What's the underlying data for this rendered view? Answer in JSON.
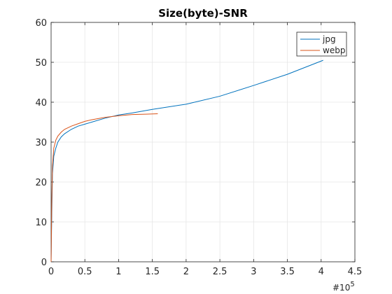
{
  "chart_data": {
    "type": "line",
    "title": "Size(byte)-SNR",
    "xlabel": "",
    "ylabel": "",
    "xlim": [
      0,
      4.5
    ],
    "ylim": [
      0,
      60
    ],
    "x_ticks": [
      0,
      0.5,
      1,
      1.5,
      2,
      2.5,
      3,
      3.5,
      4,
      4.5
    ],
    "x_tick_labels": [
      "0",
      "0.5",
      "1",
      "1.5",
      "2",
      "2.5",
      "3",
      "3.5",
      "4",
      "4.5"
    ],
    "y_ticks": [
      0,
      10,
      20,
      30,
      40,
      50,
      60
    ],
    "y_tick_labels": [
      "0",
      "10",
      "20",
      "30",
      "40",
      "50",
      "60"
    ],
    "x_exponent_base": "#10",
    "x_exponent_power": "5",
    "grid": true,
    "legend_position": "top-right",
    "series": [
      {
        "name": "jpg",
        "color": "#0072BD",
        "x": [
          0.0,
          0.01,
          0.02,
          0.04,
          0.07,
          0.1,
          0.15,
          0.2,
          0.3,
          0.4,
          0.5,
          0.6,
          0.8,
          1.0,
          1.2,
          1.5,
          2.0,
          2.5,
          3.0,
          3.5,
          4.03
        ],
        "y": [
          0.0,
          12.0,
          22.0,
          26.5,
          28.5,
          30.0,
          31.3,
          32.1,
          33.2,
          34.0,
          34.5,
          35.0,
          36.0,
          36.8,
          37.3,
          38.2,
          39.5,
          41.5,
          44.2,
          47.0,
          50.5
        ]
      },
      {
        "name": "webp",
        "color": "#D95319",
        "x": [
          0.0,
          0.01,
          0.02,
          0.04,
          0.07,
          0.1,
          0.15,
          0.2,
          0.3,
          0.4,
          0.5,
          0.6,
          0.8,
          1.0,
          1.2,
          1.4,
          1.58
        ],
        "y": [
          0.0,
          15.0,
          24.0,
          28.5,
          30.5,
          31.5,
          32.5,
          33.2,
          34.0,
          34.6,
          35.2,
          35.6,
          36.2,
          36.6,
          36.9,
          37.0,
          37.1
        ]
      }
    ]
  }
}
